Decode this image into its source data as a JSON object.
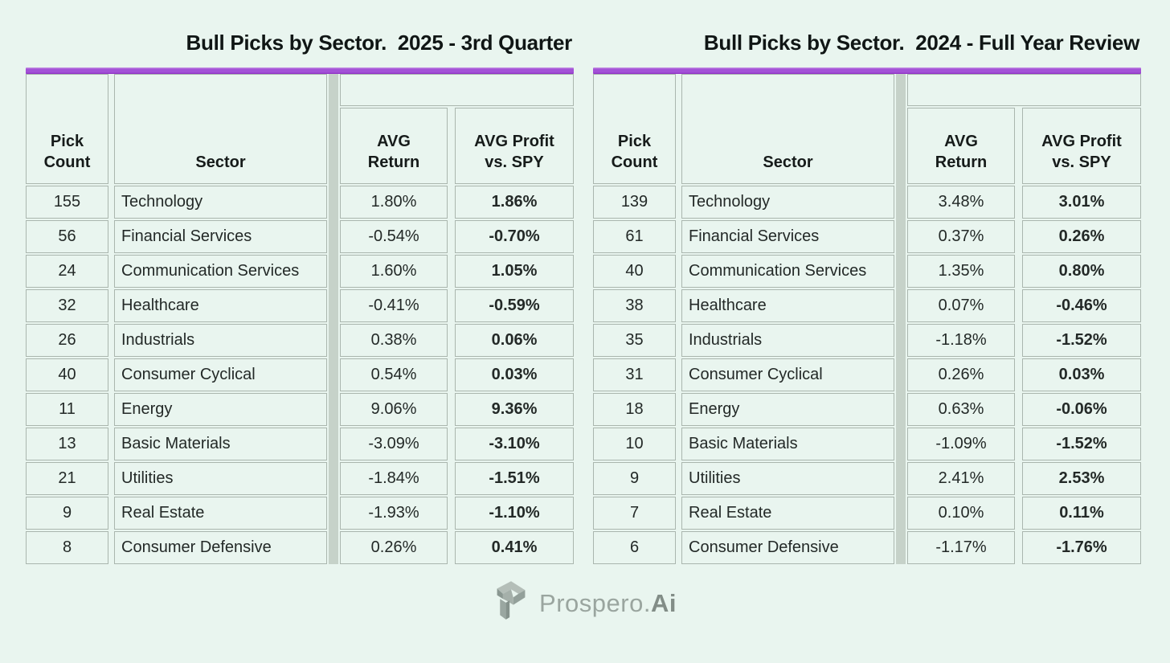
{
  "page": {
    "background": "#e9f5ef",
    "accent_color": "#a351d7",
    "divider_band_color": "#c6d2c9",
    "cell_border_color": "#aab6ae"
  },
  "chart_data": [
    {
      "type": "table",
      "title": "Bull Picks by Sector.  2025 - 3rd Quarter",
      "columns": [
        [
          "Pick",
          "Count"
        ],
        [
          "Sector"
        ],
        [
          "AVG",
          "Return"
        ],
        [
          "AVG Profit",
          "vs. SPY"
        ]
      ],
      "rows": [
        [
          "155",
          "Technology",
          "1.80%",
          "1.86%"
        ],
        [
          "56",
          "Financial Services",
          "-0.54%",
          "-0.70%"
        ],
        [
          "24",
          "Communication Services",
          "1.60%",
          "1.05%"
        ],
        [
          "32",
          "Healthcare",
          "-0.41%",
          "-0.59%"
        ],
        [
          "26",
          "Industrials",
          "0.38%",
          "0.06%"
        ],
        [
          "40",
          "Consumer Cyclical",
          "0.54%",
          "0.03%"
        ],
        [
          "11",
          "Energy",
          "9.06%",
          "9.36%"
        ],
        [
          "13",
          "Basic Materials",
          "-3.09%",
          "-3.10%"
        ],
        [
          "21",
          "Utilities",
          "-1.84%",
          "-1.51%"
        ],
        [
          "9",
          "Real Estate",
          "-1.93%",
          "-1.10%"
        ],
        [
          "8",
          "Consumer Defensive",
          "0.26%",
          "0.41%"
        ]
      ]
    },
    {
      "type": "table",
      "title": "Bull Picks by Sector.  2024 - Full Year Review",
      "columns": [
        [
          "Pick",
          "Count"
        ],
        [
          "Sector"
        ],
        [
          "AVG",
          "Return"
        ],
        [
          "AVG Profit",
          "vs. SPY"
        ]
      ],
      "rows": [
        [
          "139",
          "Technology",
          "3.48%",
          "3.01%"
        ],
        [
          "61",
          "Financial Services",
          "0.37%",
          "0.26%"
        ],
        [
          "40",
          "Communication Services",
          "1.35%",
          "0.80%"
        ],
        [
          "38",
          "Healthcare",
          "0.07%",
          "-0.46%"
        ],
        [
          "35",
          "Industrials",
          "-1.18%",
          "-1.52%"
        ],
        [
          "31",
          "Consumer Cyclical",
          "0.26%",
          "0.03%"
        ],
        [
          "18",
          "Energy",
          "0.63%",
          "-0.06%"
        ],
        [
          "10",
          "Basic Materials",
          "-1.09%",
          "-1.52%"
        ],
        [
          "9",
          "Utilities",
          "2.41%",
          "2.53%"
        ],
        [
          "7",
          "Real Estate",
          "0.10%",
          "0.11%"
        ],
        [
          "6",
          "Consumer Defensive",
          "-1.17%",
          "-1.76%"
        ]
      ]
    }
  ],
  "footer": {
    "brand_regular": "Prospero.",
    "brand_bold": "Ai",
    "logo_icon": "prospero-arrow-icon"
  }
}
